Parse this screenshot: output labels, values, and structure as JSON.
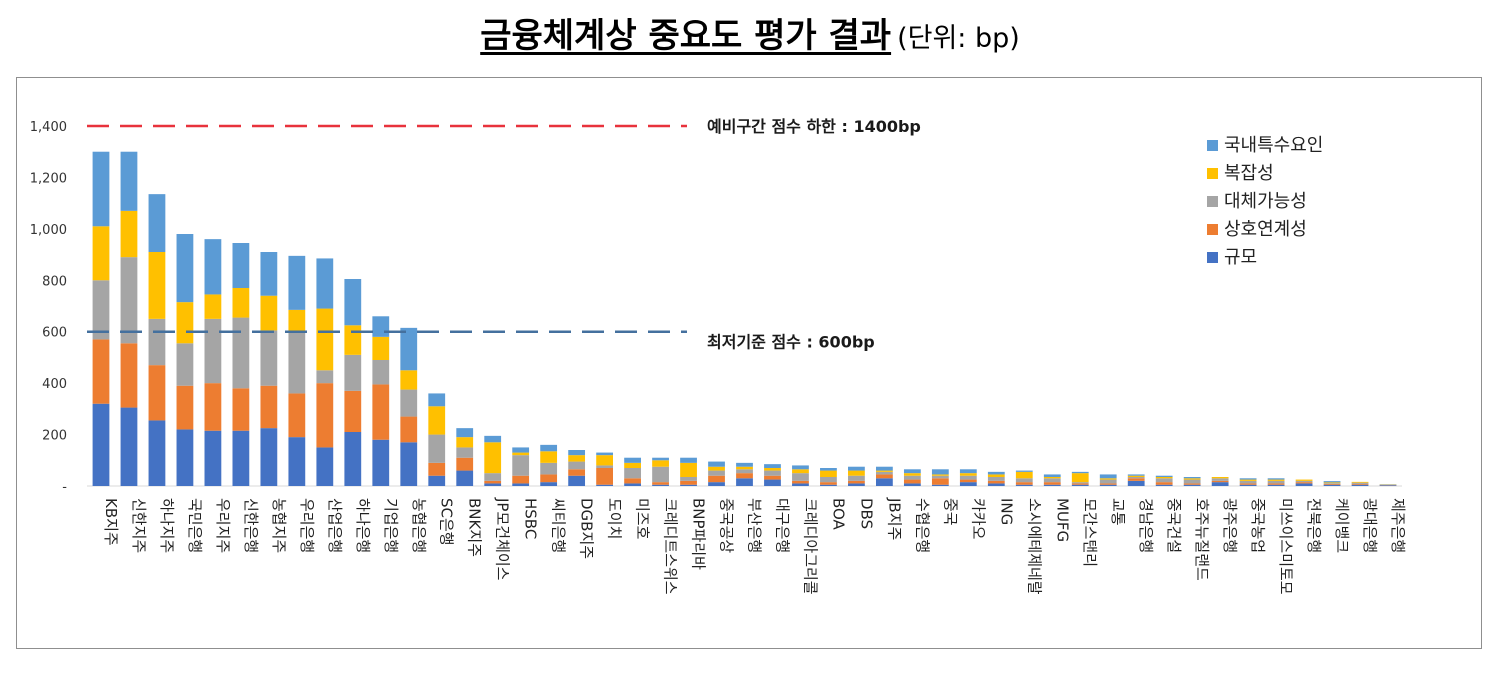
{
  "page_title": "금융체계상 중요도 평가 결과",
  "page_unit": "(단위: bp)",
  "chart_data": {
    "type": "bar",
    "stacked": true,
    "title": "금융체계상 중요도 평가 결과",
    "subtitle": "(단위: bp)",
    "xlabel": "",
    "ylabel": "",
    "ylim": [
      0,
      1400
    ],
    "yticks": [
      {
        "value": 0,
        "label": "-"
      },
      {
        "value": 200,
        "label": "200"
      },
      {
        "value": 400,
        "label": "400"
      },
      {
        "value": 600,
        "label": "600"
      },
      {
        "value": 800,
        "label": "800"
      },
      {
        "value": 1000,
        "label": "1,000"
      },
      {
        "value": 1200,
        "label": "1,200"
      },
      {
        "value": 1400,
        "label": "1,400"
      }
    ],
    "grid": false,
    "legend_position": "top-right",
    "categories": [
      "KB지주",
      "신한지주",
      "하나지주",
      "국민은행",
      "우리지주",
      "신한은행",
      "농협지주",
      "우리은행",
      "산업은행",
      "하나은행",
      "기업은행",
      "농협은행",
      "SC은행",
      "BNK지주",
      "JP모건체이스",
      "HSBC",
      "씨티은행",
      "DGB지주",
      "도이치",
      "미즈호",
      "크레디트스위스",
      "BNP파리바",
      "중국공상",
      "부산은행",
      "대구은행",
      "크레디아그리콜",
      "BOA",
      "DBS",
      "JB지주",
      "수협은행",
      "중국",
      "카카오",
      "ING",
      "소시에테제네랄",
      "MUFG",
      "모간스탠리",
      "교통",
      "경남은행",
      "중국건설",
      "호주뉴질랜드",
      "광주은행",
      "중국농업",
      "미쓰이스미토모",
      "전북은행",
      "케이뱅크",
      "광대은행",
      "제주은행"
    ],
    "series": [
      {
        "name": "규모",
        "color": "#4472c4",
        "values": [
          320,
          305,
          255,
          220,
          215,
          215,
          225,
          190,
          150,
          210,
          180,
          170,
          40,
          60,
          10,
          10,
          15,
          40,
          5,
          10,
          5,
          5,
          15,
          30,
          25,
          10,
          5,
          10,
          30,
          10,
          5,
          15,
          10,
          5,
          5,
          5,
          5,
          20,
          5,
          5,
          15,
          5,
          5,
          10,
          5,
          5,
          3
        ]
      },
      {
        "name": "상호연계성",
        "color": "#ed7d31",
        "values": [
          250,
          250,
          215,
          170,
          185,
          165,
          165,
          170,
          250,
          160,
          215,
          100,
          50,
          50,
          10,
          30,
          30,
          25,
          65,
          20,
          10,
          15,
          25,
          20,
          15,
          10,
          10,
          10,
          15,
          15,
          25,
          10,
          10,
          10,
          10,
          5,
          5,
          10,
          10,
          5,
          5,
          5,
          5,
          5,
          3,
          3,
          1
        ]
      },
      {
        "name": "대체가능성",
        "color": "#a5a5a5",
        "values": [
          230,
          335,
          180,
          165,
          250,
          275,
          215,
          235,
          50,
          140,
          95,
          105,
          110,
          40,
          30,
          80,
          45,
          30,
          10,
          40,
          60,
          15,
          20,
          15,
          20,
          30,
          20,
          20,
          10,
          15,
          10,
          15,
          15,
          15,
          15,
          5,
          15,
          5,
          15,
          15,
          10,
          10,
          10,
          5,
          3,
          5,
          1
        ]
      },
      {
        "name": "복잡성",
        "color": "#ffc000",
        "values": [
          210,
          180,
          260,
          160,
          95,
          115,
          135,
          90,
          240,
          115,
          90,
          75,
          110,
          40,
          120,
          10,
          45,
          25,
          40,
          20,
          25,
          55,
          15,
          10,
          10,
          15,
          25,
          20,
          5,
          10,
          5,
          10,
          10,
          25,
          5,
          35,
          5,
          5,
          5,
          5,
          5,
          5,
          5,
          5,
          3,
          3,
          1
        ]
      },
      {
        "name": "국내특수요인",
        "color": "#5b9bd5",
        "values": [
          290,
          230,
          225,
          265,
          215,
          175,
          170,
          210,
          195,
          180,
          80,
          165,
          50,
          35,
          25,
          20,
          25,
          20,
          10,
          20,
          10,
          20,
          20,
          15,
          15,
          15,
          10,
          15,
          15,
          15,
          20,
          15,
          10,
          5,
          10,
          5,
          15,
          5,
          5,
          5,
          0,
          5,
          5,
          0,
          5,
          0,
          1
        ]
      }
    ],
    "reference_lines": [
      {
        "value": 1400,
        "label": "예비구간 점수 하한 : 1400bp",
        "color": "#e8323c"
      },
      {
        "value": 600,
        "label": "최저기준 점수 : 600bp",
        "color": "#44709e"
      }
    ]
  }
}
